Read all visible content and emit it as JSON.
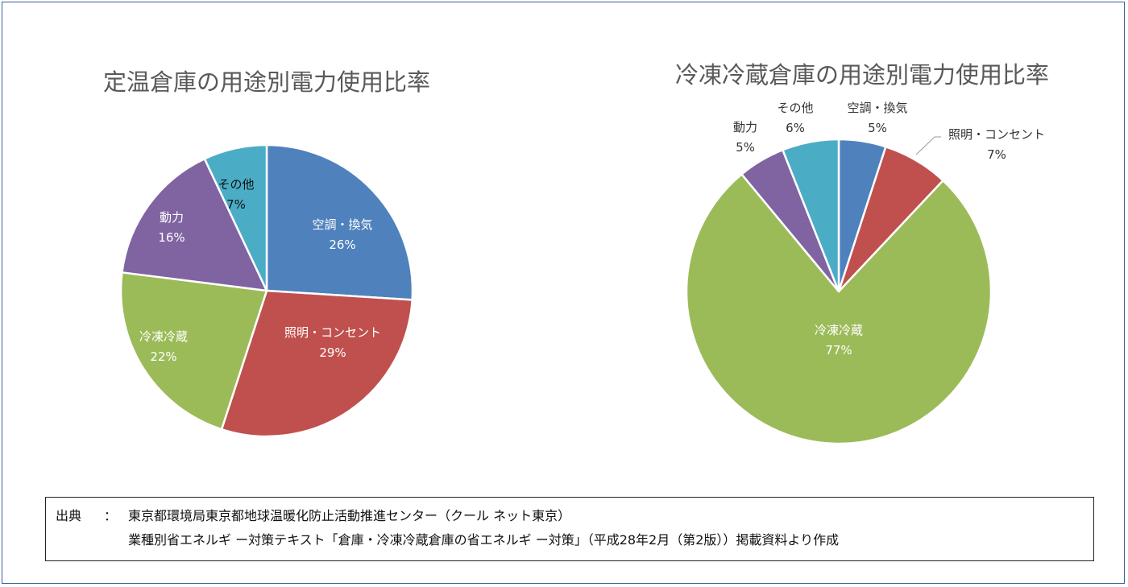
{
  "chart_data": [
    {
      "type": "pie",
      "title": "定温倉庫の用途別電力使用比率",
      "slices": [
        {
          "name": "空調・換気",
          "value": 26,
          "label": "26%",
          "color": "#4F81BD",
          "text_color": "#ffffff"
        },
        {
          "name": "照明・コンセント",
          "value": 29,
          "label": "29%",
          "color": "#C0504D",
          "text_color": "#ffffff"
        },
        {
          "name": "冷凍冷蔵",
          "value": 22,
          "label": "22%",
          "color": "#9BBB59",
          "text_color": "#ffffff"
        },
        {
          "name": "動力",
          "value": 16,
          "label": "16%",
          "color": "#8064A2",
          "text_color": "#ffffff"
        },
        {
          "name": "その他",
          "value": 7,
          "label": "7%",
          "color": "#4BACC6",
          "text_color": "#111111"
        }
      ]
    },
    {
      "type": "pie",
      "title": "冷凍冷蔵倉庫の用途別電力使用比率",
      "slices": [
        {
          "name": "空調・換気",
          "value": 5,
          "label": "5%",
          "color": "#4F81BD",
          "text_color": "#333333"
        },
        {
          "name": "照明・コンセント",
          "value": 7,
          "label": "7%",
          "color": "#C0504D",
          "text_color": "#333333"
        },
        {
          "name": "冷凍冷蔵",
          "value": 77,
          "label": "77%",
          "color": "#9BBB59",
          "text_color": "#ffffff"
        },
        {
          "name": "動力",
          "value": 5,
          "label": "5%",
          "color": "#8064A2",
          "text_color": "#333333"
        },
        {
          "name": "その他",
          "value": 6,
          "label": "6%",
          "color": "#4BACC6",
          "text_color": "#333333"
        }
      ]
    }
  ],
  "source": {
    "label": "出典",
    "colon": "：",
    "line1": "東京都環境局東京都地球温暖化防止活動推進センター（クール ネット東京）",
    "line2": "業種別省エネルギ ー対策テキスト「倉庫・冷凍冷蔵倉庫の省エネルギ ー対策」（平成28年2月（第2版））掲載資料より作成"
  }
}
